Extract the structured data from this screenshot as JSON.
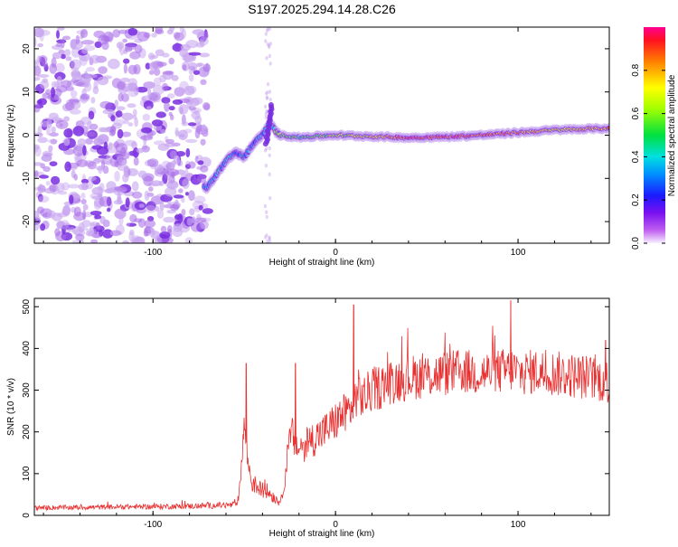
{
  "title": "S197.2025.294.14.28.C26",
  "colorbar": {
    "label": "Normalized spectral amplitude",
    "ticks": [
      "0.0",
      "0.2",
      "0.4",
      "0.6",
      "0.8"
    ],
    "tick_values": [
      0.0,
      0.2,
      0.4,
      0.6,
      0.8
    ],
    "range": [
      0,
      1
    ]
  },
  "colors": {
    "snr_line": "#e83030",
    "spectrogram_halo": "#c9a8f0",
    "spectrogram_body": "#7a2ee0",
    "spectrogram_hot": "#e8102a"
  },
  "chart_data": [
    {
      "type": "heatmap",
      "title": "S197.2025.294.14.28.C26",
      "xlabel": "Height of straight line (km)",
      "ylabel": "Frequency (Hz)",
      "xlim": [
        -165,
        150
      ],
      "ylim": [
        -25,
        25
      ],
      "x_ticks": [
        -100,
        0,
        100
      ],
      "y_ticks": [
        -20,
        -10,
        0,
        10,
        20
      ],
      "x_tick_labels": [
        "-100",
        "0",
        "100"
      ],
      "y_tick_labels": [
        "-20",
        "-10",
        "0",
        "10",
        "20"
      ],
      "ridge": {
        "x": [
          -70,
          -65,
          -60,
          -55,
          -50,
          -45,
          -40,
          -36,
          -33,
          -30,
          -20,
          0,
          20,
          40,
          60,
          80,
          100,
          120,
          150
        ],
        "freq": [
          -12,
          -9,
          -6,
          -4,
          -5,
          -2,
          0,
          3,
          1,
          0,
          -0.5,
          0,
          -0.3,
          -0.6,
          -0.4,
          0,
          0.6,
          1.2,
          1.6
        ],
        "amplitude": [
          0.3,
          0.35,
          0.35,
          0.3,
          0.35,
          0.3,
          0.3,
          0.4,
          0.5,
          0.6,
          0.5,
          0.6,
          0.7,
          0.95,
          0.9,
          0.9,
          0.85,
          0.7,
          0.8
        ]
      },
      "noise_region_x": [
        -165,
        -70
      ],
      "colorbar_range": [
        0,
        1
      ]
    },
    {
      "type": "line",
      "xlabel": "Height of straight line (km)",
      "ylabel": "SNR (10 * v/v)",
      "xlim": [
        -165,
        150
      ],
      "ylim": [
        0,
        520
      ],
      "x_ticks": [
        -100,
        0,
        100
      ],
      "y_ticks": [
        0,
        100,
        200,
        300,
        400,
        500
      ],
      "x_tick_labels": [
        "-100",
        "0",
        "100"
      ],
      "y_tick_labels": [
        "0",
        "100",
        "200",
        "300",
        "400",
        "500"
      ],
      "series": [
        {
          "name": "SNR",
          "x": [
            -165,
            -120,
            -80,
            -55,
            -53,
            -50,
            -48,
            -46,
            -42,
            -38,
            -34,
            -30,
            -28,
            -26,
            -24,
            -22,
            -20,
            -15,
            -10,
            -5,
            0,
            5,
            10,
            12,
            15,
            20,
            30,
            40,
            50,
            60,
            70,
            80,
            90,
            98,
            100,
            110,
            120,
            130,
            140,
            150
          ],
          "mean": [
            18,
            20,
            22,
            25,
            40,
            220,
            130,
            80,
            65,
            60,
            45,
            30,
            80,
            150,
            200,
            170,
            160,
            175,
            190,
            205,
            225,
            245,
            260,
            300,
            280,
            300,
            320,
            330,
            335,
            340,
            345,
            340,
            345,
            350,
            340,
            345,
            340,
            335,
            330,
            320
          ],
          "noise": [
            6,
            6,
            7,
            8,
            10,
            40,
            35,
            25,
            20,
            20,
            15,
            10,
            20,
            40,
            45,
            40,
            40,
            42,
            45,
            45,
            48,
            50,
            50,
            55,
            55,
            55,
            55,
            55,
            55,
            55,
            55,
            55,
            55,
            55,
            55,
            55,
            55,
            55,
            55,
            55
          ],
          "peaks": [
            {
              "x": -49,
              "y": 365
            },
            {
              "x": -22,
              "y": 365
            },
            {
              "x": 10,
              "y": 505
            },
            {
              "x": 96,
              "y": 515
            },
            {
              "x": 148,
              "y": 420
            }
          ]
        }
      ]
    }
  ]
}
